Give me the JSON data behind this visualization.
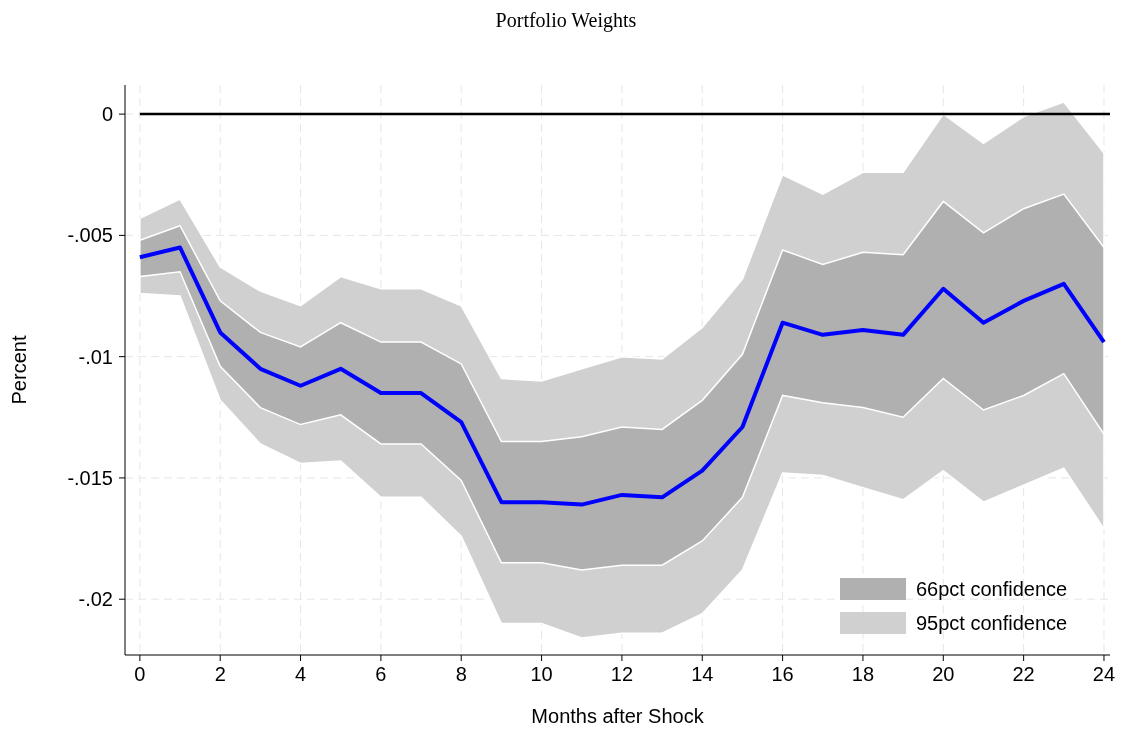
{
  "chart_data": {
    "type": "line",
    "title": "Portfolio Weights",
    "xlabel": "Months after Shock",
    "ylabel": "Percent",
    "x": [
      0,
      1,
      2,
      3,
      4,
      5,
      6,
      7,
      8,
      9,
      10,
      11,
      12,
      13,
      14,
      15,
      16,
      17,
      18,
      19,
      20,
      21,
      22,
      23,
      24
    ],
    "series": [
      {
        "name": "66pct confidence",
        "color": "#b0b0b0",
        "values": [
          null,
          null,
          null,
          null,
          null,
          null,
          null,
          null,
          null,
          null,
          null,
          null,
          null,
          null,
          null,
          null,
          null,
          null,
          null,
          null,
          null,
          null,
          null,
          null,
          null
        ],
        "lower": [
          -0.0067,
          -0.0065,
          -0.0104,
          -0.0121,
          -0.0128,
          -0.0124,
          -0.0136,
          -0.0136,
          -0.0151,
          -0.0185,
          -0.0185,
          -0.0188,
          -0.0186,
          -0.0186,
          -0.0176,
          -0.0158,
          -0.0116,
          -0.0119,
          -0.0121,
          -0.0125,
          -0.0109,
          -0.0122,
          -0.0116,
          -0.0107,
          -0.0132
        ],
        "upper": [
          -0.0052,
          -0.0046,
          -0.0077,
          -0.009,
          -0.0096,
          -0.0086,
          -0.0094,
          -0.0094,
          -0.0103,
          -0.0135,
          -0.0135,
          -0.0133,
          -0.0129,
          -0.013,
          -0.0118,
          -0.0099,
          -0.0056,
          -0.0062,
          -0.0057,
          -0.0058,
          -0.0036,
          -0.0049,
          -0.0039,
          -0.0033,
          -0.0055
        ]
      },
      {
        "name": "95pct confidence",
        "color": "#d0d0d0",
        "values": [
          null,
          null,
          null,
          null,
          null,
          null,
          null,
          null,
          null,
          null,
          null,
          null,
          null,
          null,
          null,
          null,
          null,
          null,
          null,
          null,
          null,
          null,
          null,
          null,
          null
        ],
        "lower": [
          -0.0074,
          -0.0075,
          -0.0118,
          -0.0136,
          -0.0144,
          -0.0143,
          -0.0158,
          -0.0158,
          -0.0174,
          -0.021,
          -0.021,
          -0.0216,
          -0.0214,
          -0.0214,
          -0.0206,
          -0.0188,
          -0.0148,
          -0.0149,
          -0.0154,
          -0.0159,
          -0.0147,
          -0.016,
          -0.0153,
          -0.0146,
          -0.0171
        ],
        "upper": [
          -0.0043,
          -0.0035,
          -0.0063,
          -0.0073,
          -0.0079,
          -0.0067,
          -0.0072,
          -0.0072,
          -0.0079,
          -0.0109,
          -0.011,
          -0.0105,
          -0.01,
          -0.0101,
          -0.0088,
          -0.0068,
          -0.0025,
          -0.0033,
          -0.0024,
          -0.0024,
          0.0,
          -0.0012,
          -0.0001,
          0.0005,
          -0.0016
        ]
      },
      {
        "color": "#0000ff",
        "values": [
          -0.0059,
          -0.0055,
          -0.009,
          -0.0105,
          -0.0112,
          -0.0105,
          -0.0115,
          -0.0115,
          -0.0127,
          -0.016,
          -0.016,
          -0.0161,
          -0.0157,
          -0.0158,
          -0.0147,
          -0.0129,
          -0.0086,
          -0.0091,
          -0.0089,
          -0.0091,
          -0.0072,
          -0.0086,
          -0.0077,
          -0.007,
          -0.0094
        ]
      }
    ],
    "xlim": [
      -0.37,
      24.15
    ],
    "xticks": [
      0,
      2,
      4,
      6,
      8,
      10,
      12,
      14,
      16,
      18,
      20,
      22,
      24
    ],
    "ylim": [
      -0.0223,
      0.0012
    ],
    "yticks": [
      {
        "value": 0,
        "label": "0"
      },
      {
        "value": -0.005,
        "label": "-.005"
      },
      {
        "value": -0.01,
        "label": "-.01"
      },
      {
        "value": -0.015,
        "label": "-.015"
      },
      {
        "value": -0.02,
        "label": "-.02"
      }
    ],
    "ref_lines": [
      {
        "axis": "y",
        "value": 0,
        "color": "#000000",
        "line_style": "solid"
      }
    ],
    "grid": true,
    "legend": "bottom right",
    "line_style": "solid",
    "marker": "none"
  }
}
